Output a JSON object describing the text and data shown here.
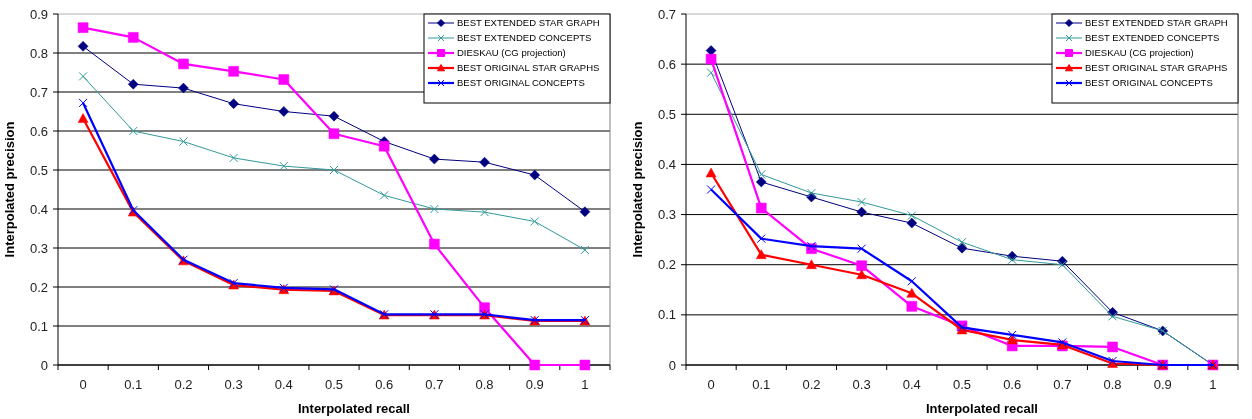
{
  "chart_data": [
    {
      "type": "line",
      "xlabel": "Interpolated recall",
      "ylabel": "Interpolated precision",
      "categories": [
        "0",
        "0.1",
        "0.2",
        "0.3",
        "0.4",
        "0.5",
        "0.6",
        "0.7",
        "0.8",
        "0.9",
        "1"
      ],
      "ylim": [
        0,
        0.9
      ],
      "yticks": [
        0,
        0.1,
        0.2,
        0.3,
        0.4,
        0.5,
        0.6,
        0.7,
        0.8,
        0.9
      ],
      "grid": "y",
      "legend": "top right",
      "series": [
        {
          "name": "BEST EXTENDED STAR GRAPH",
          "color": "#000080",
          "marker": "diamond",
          "values": [
            0.817,
            0.72,
            0.71,
            0.67,
            0.65,
            0.638,
            0.573,
            0.528,
            0.52,
            0.487,
            0.393
          ]
        },
        {
          "name": "BEST EXTENDED CONCEPTS",
          "color": "#339999",
          "marker": "cross",
          "values": [
            0.74,
            0.6,
            0.573,
            0.531,
            0.51,
            0.5,
            0.435,
            0.4,
            0.392,
            0.368,
            0.295
          ]
        },
        {
          "name": "DIESKAU (CG projection)",
          "color": "#ff00ff",
          "marker": "square",
          "values": [
            0.865,
            0.84,
            0.772,
            0.753,
            0.732,
            0.593,
            0.561,
            0.31,
            0.147,
            0,
            0
          ]
        },
        {
          "name": "BEST ORIGINAL STAR GRAPHS",
          "color": "#ff0000",
          "marker": "triangle",
          "values": [
            0.632,
            0.392,
            0.267,
            0.205,
            0.193,
            0.19,
            0.128,
            0.128,
            0.128,
            0.113,
            0.113
          ]
        },
        {
          "name": "BEST ORIGINAL CONCEPTS",
          "color": "#0000ff",
          "marker": "cross",
          "values": [
            0.672,
            0.397,
            0.27,
            0.21,
            0.198,
            0.194,
            0.13,
            0.13,
            0.13,
            0.115,
            0.115
          ]
        }
      ]
    },
    {
      "type": "line",
      "xlabel": "Interpolated recall",
      "ylabel": "Interpolated precision",
      "categories": [
        "0",
        "0.1",
        "0.2",
        "0.3",
        "0.4",
        "0.5",
        "0.6",
        "0.7",
        "0.8",
        "0.9",
        "1"
      ],
      "ylim": [
        0,
        0.7
      ],
      "yticks": [
        0,
        0.1,
        0.2,
        0.3,
        0.4,
        0.5,
        0.6,
        0.7
      ],
      "grid": "y",
      "legend": "top right",
      "series": [
        {
          "name": "BEST EXTENDED STAR GRAPH",
          "color": "#000080",
          "marker": "diamond",
          "values": [
            0.627,
            0.365,
            0.335,
            0.305,
            0.283,
            0.233,
            0.217,
            0.207,
            0.105,
            0.068,
            0
          ]
        },
        {
          "name": "BEST EXTENDED CONCEPTS",
          "color": "#339999",
          "marker": "cross",
          "values": [
            0.583,
            0.38,
            0.343,
            0.325,
            0.298,
            0.245,
            0.21,
            0.2,
            0.097,
            0.068,
            0
          ]
        },
        {
          "name": "DIESKAU (CG projection)",
          "color": "#ff00ff",
          "marker": "square",
          "values": [
            0.61,
            0.313,
            0.232,
            0.198,
            0.117,
            0.078,
            0.038,
            0.038,
            0.036,
            0,
            0
          ]
        },
        {
          "name": "BEST ORIGINAL STAR GRAPHS",
          "color": "#ff0000",
          "marker": "triangle",
          "values": [
            0.383,
            0.22,
            0.2,
            0.18,
            0.143,
            0.07,
            0.05,
            0.04,
            0.003,
            0,
            0
          ]
        },
        {
          "name": "BEST ORIGINAL CONCEPTS",
          "color": "#0000ff",
          "marker": "cross",
          "values": [
            0.35,
            0.252,
            0.237,
            0.232,
            0.167,
            0.075,
            0.06,
            0.045,
            0.008,
            0,
            0
          ]
        }
      ]
    }
  ]
}
